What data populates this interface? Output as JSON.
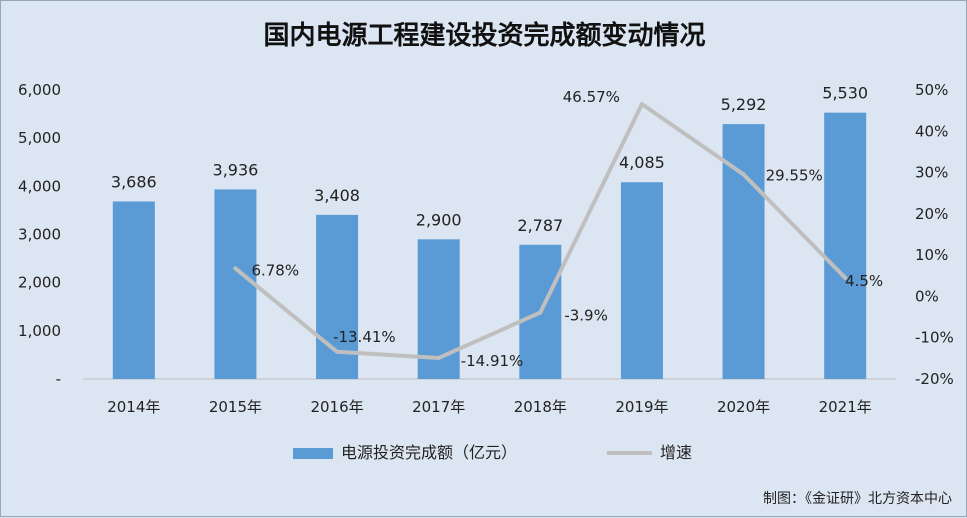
{
  "chart_data": {
    "type": "bar",
    "title": "国内电源工程建设投资完成额变动情况",
    "categories": [
      "2014年",
      "2015年",
      "2016年",
      "2017年",
      "2018年",
      "2019年",
      "2020年",
      "2021年"
    ],
    "series": [
      {
        "name": "电源投资完成额（亿元）",
        "type": "bar",
        "axis": "left",
        "values": [
          3686,
          3936,
          3408,
          2900,
          2787,
          4085,
          5292,
          5530
        ],
        "labels": [
          "3,686",
          "3,936",
          "3,408",
          "2,900",
          "2,787",
          "4,085",
          "5,292",
          "5,530"
        ],
        "color": "#5b9bd5"
      },
      {
        "name": "增速",
        "type": "line",
        "axis": "right",
        "values": [
          null,
          6.78,
          -13.41,
          -14.91,
          -3.9,
          46.57,
          29.55,
          4.5
        ],
        "labels": [
          "",
          "6.78%",
          "-13.41%",
          "-14.91%",
          "-3.9%",
          "46.57%",
          "29.55%",
          "4.5%"
        ],
        "color": "#bfbfbf"
      }
    ],
    "y_left": {
      "range": [
        0,
        6000
      ],
      "ticks": [
        0,
        1000,
        2000,
        3000,
        4000,
        5000,
        6000
      ],
      "tick_labels": [
        "-",
        "1,000",
        "2,000",
        "3,000",
        "4,000",
        "5,000",
        "6,000"
      ]
    },
    "y_right": {
      "range": [
        -20,
        50
      ],
      "ticks": [
        -20,
        -10,
        0,
        10,
        20,
        30,
        40,
        50
      ],
      "tick_labels": [
        "-20%",
        "-10%",
        "0%",
        "10%",
        "20%",
        "30%",
        "40%",
        "50%"
      ]
    },
    "grid": false,
    "legend_position": "bottom"
  },
  "source_note": "制图：《金证研》北方资本中心"
}
